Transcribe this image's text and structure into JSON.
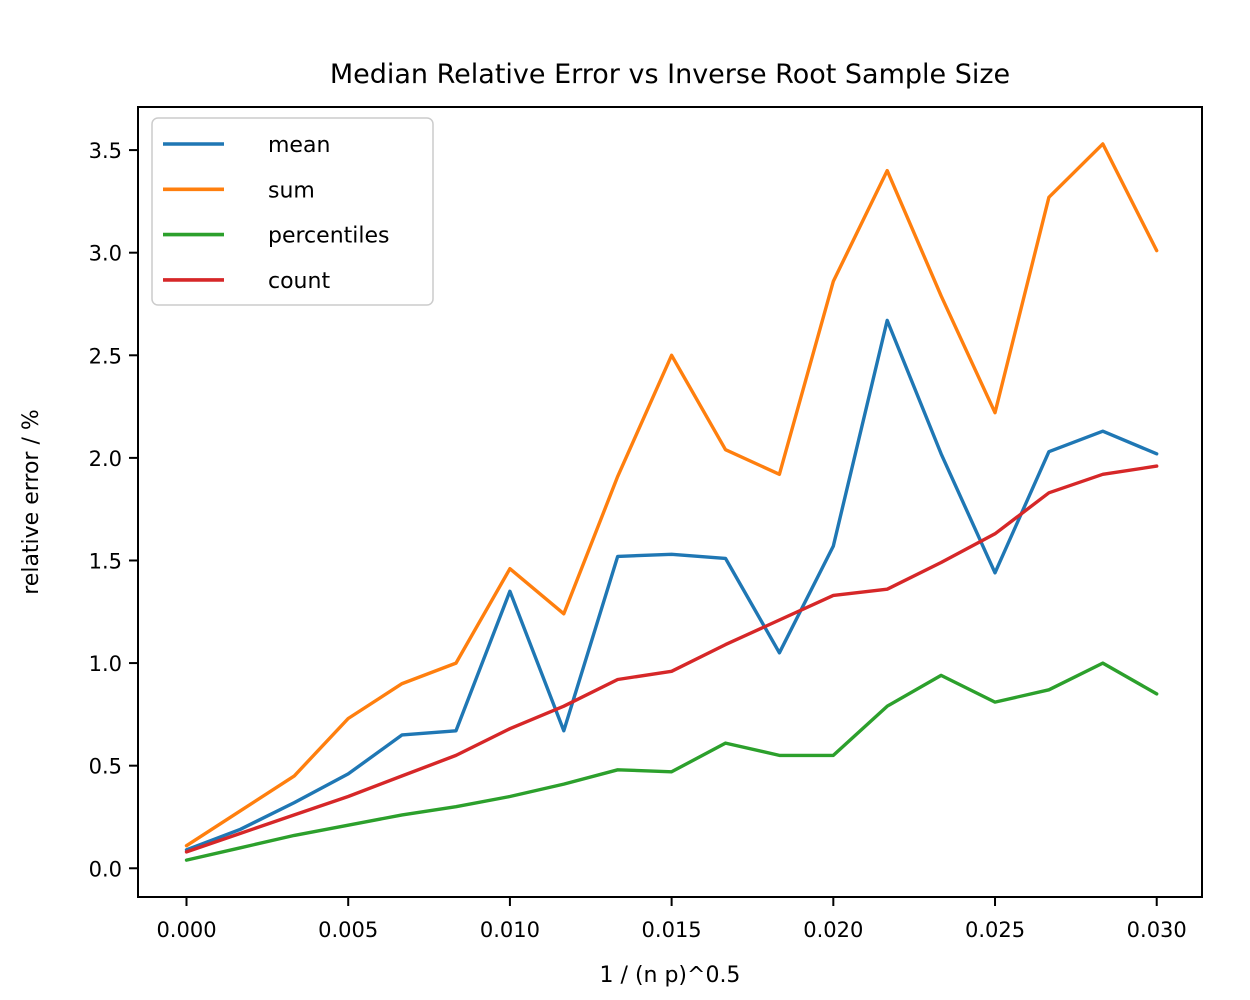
{
  "figure": {
    "background": "#ffffff",
    "text_color": "#000000",
    "spine_color": "#000000",
    "legend_border_color": "#cccccc"
  },
  "chart_data": {
    "type": "line",
    "title": "Median Relative Error vs Inverse Root Sample Size",
    "xlabel": "1 / (n p)^0.5",
    "ylabel": "relative error / %",
    "grid": false,
    "legend_position": "upper left",
    "xlim": [
      -0.0015,
      0.0314
    ],
    "ylim": [
      -0.14,
      3.71
    ],
    "x_ticks": [
      0,
      0.005,
      0.01,
      0.015,
      0.02,
      0.025,
      0.03
    ],
    "x_tick_labels": [
      "0.000",
      "0.005",
      "0.010",
      "0.015",
      "0.020",
      "0.025",
      "0.030"
    ],
    "y_ticks": [
      0,
      0.5,
      1,
      1.5,
      2,
      2.5,
      3,
      3.5
    ],
    "y_tick_labels": [
      "0.0",
      "0.5",
      "1.0",
      "1.5",
      "2.0",
      "2.5",
      "3.0",
      "3.5"
    ],
    "x": [
      0.0,
      0.001667,
      0.003333,
      0.005,
      0.006667,
      0.008333,
      0.01,
      0.011667,
      0.013333,
      0.015,
      0.016667,
      0.018333,
      0.02,
      0.021667,
      0.023333,
      0.025,
      0.026667,
      0.028333,
      0.03
    ],
    "series": [
      {
        "name": "mean",
        "color": "#1f77b4",
        "values": [
          0.09,
          0.19,
          0.32,
          0.46,
          0.65,
          0.67,
          1.35,
          0.67,
          1.52,
          1.53,
          1.51,
          1.05,
          1.57,
          2.67,
          2.02,
          1.44,
          2.03,
          2.13,
          2.02
        ]
      },
      {
        "name": "sum",
        "color": "#ff7f0e",
        "values": [
          0.11,
          0.28,
          0.45,
          0.73,
          0.9,
          1.0,
          1.46,
          1.24,
          1.91,
          2.5,
          2.04,
          1.92,
          2.86,
          3.4,
          2.79,
          2.22,
          3.27,
          3.53,
          3.01
        ]
      },
      {
        "name": "percentiles",
        "color": "#2ca02c",
        "values": [
          0.04,
          0.1,
          0.16,
          0.21,
          0.26,
          0.3,
          0.35,
          0.41,
          0.48,
          0.47,
          0.61,
          0.55,
          0.55,
          0.79,
          0.94,
          0.81,
          0.87,
          1.0,
          0.85
        ]
      },
      {
        "name": "count",
        "color": "#d62728",
        "values": [
          0.08,
          0.17,
          0.26,
          0.35,
          0.45,
          0.55,
          0.68,
          0.79,
          0.92,
          0.96,
          1.09,
          1.21,
          1.33,
          1.36,
          1.49,
          1.63,
          1.83,
          1.92,
          1.96
        ]
      }
    ]
  }
}
